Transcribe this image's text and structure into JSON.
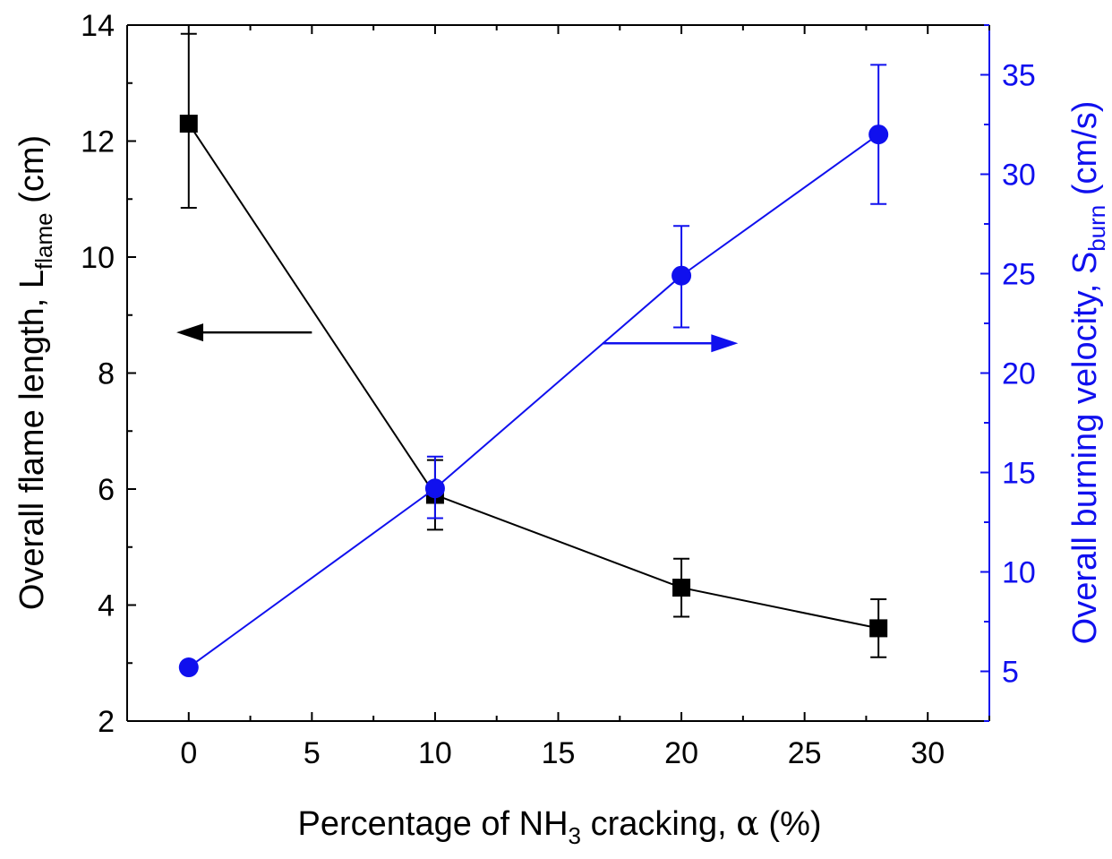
{
  "chart_data": {
    "type": "line",
    "x": [
      0,
      10,
      20,
      28
    ],
    "xlim": [
      -2.5,
      32.5
    ],
    "x_ticks": [
      "0",
      "5",
      "10",
      "15",
      "20",
      "25",
      "30"
    ],
    "x_tick_values": [
      0,
      5,
      10,
      15,
      20,
      25,
      30
    ],
    "xlabel": {
      "prefix": "Percentage of NH",
      "sub": "3",
      "suffix": " cracking, ",
      "symbol": "α",
      "tail": " (%)"
    },
    "left_axis": {
      "ylim": [
        2,
        14
      ],
      "ticks": [
        "2",
        "4",
        "6",
        "8",
        "10",
        "12",
        "14"
      ],
      "tick_values": [
        2,
        4,
        6,
        8,
        10,
        12,
        14
      ],
      "label_main": "Overall flame length, L",
      "label_sub": "flame",
      "label_unit": " (cm)",
      "color": "#000000"
    },
    "right_axis": {
      "ylim": [
        2.5,
        37.5
      ],
      "ticks": [
        "5",
        "10",
        "15",
        "20",
        "25",
        "30",
        "35"
      ],
      "tick_values": [
        5,
        10,
        15,
        20,
        25,
        30,
        35
      ],
      "label_main": "Overall burning velocity, S",
      "label_sub": "burn",
      "label_unit": " (cm/s)",
      "color": "#1010ee"
    },
    "series": [
      {
        "name": "Overall flame length",
        "axis": "left",
        "marker": "square",
        "color": "#000000",
        "values": [
          12.3,
          5.9,
          4.3,
          3.6
        ],
        "err_low": [
          10.85,
          5.3,
          3.8,
          3.1
        ],
        "err_high": [
          13.85,
          6.5,
          4.8,
          4.1
        ]
      },
      {
        "name": "Overall burning velocity",
        "axis": "right",
        "marker": "circle",
        "color": "#1010ee",
        "values": [
          5.2,
          14.2,
          24.9,
          32.0
        ],
        "err_low": [
          5.0,
          12.7,
          22.3,
          28.5
        ],
        "err_high": [
          5.4,
          15.8,
          27.4,
          35.5
        ]
      }
    ],
    "annotations": [
      {
        "name": "left-arrow",
        "direction": "left",
        "color": "#000000",
        "x_from": 5,
        "x_to": -0.5,
        "y_axis": "left",
        "y": 8.7
      },
      {
        "name": "right-arrow",
        "direction": "right",
        "color": "#1010ee",
        "x_from": 16.8,
        "x_to": 22.3,
        "y_axis": "right",
        "y": 21.5
      }
    ]
  }
}
